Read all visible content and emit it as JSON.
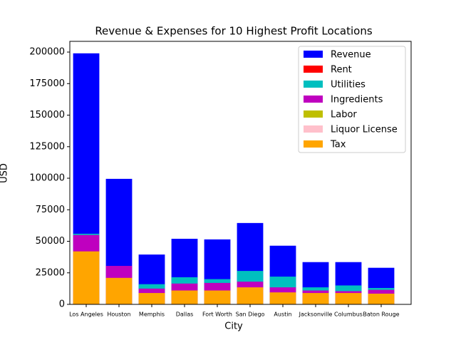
{
  "chart_data": {
    "type": "bar",
    "title": "Revenue & Expenses for 10 Highest Profit Locations",
    "x_label": "City",
    "y_label": "USD",
    "categories": [
      "Los Angeles",
      "Houston",
      "Memphis",
      "Dallas",
      "Fort Worth",
      "San Diego",
      "Austin",
      "Jacksonville",
      "Columbus",
      "Baton Rouge"
    ],
    "series": [
      {
        "name": "Revenue",
        "color": "#0000ff",
        "values": [
          199000,
          99500,
          39500,
          52000,
          51500,
          64500,
          46500,
          33500,
          33500,
          29000
        ]
      },
      {
        "name": "Rent",
        "color": "#ff0000",
        "values": [
          null,
          null,
          null,
          null,
          null,
          null,
          null,
          null,
          null,
          null
        ]
      },
      {
        "name": "Utilities",
        "color": "#00bfbf",
        "values": [
          56000,
          null,
          16000,
          21500,
          20000,
          26500,
          22000,
          13500,
          15000,
          13000
        ]
      },
      {
        "name": "Ingredients",
        "color": "#bf00bf",
        "values": [
          55000,
          30500,
          12500,
          16500,
          17000,
          18000,
          13500,
          11000,
          10500,
          11500
        ]
      },
      {
        "name": "Labor",
        "color": "#bfbf00",
        "values": [
          null,
          null,
          null,
          null,
          null,
          null,
          null,
          null,
          null,
          null
        ]
      },
      {
        "name": "Liquor License",
        "color": "#ffc0cb",
        "values": [
          null,
          null,
          null,
          null,
          null,
          null,
          null,
          null,
          null,
          null
        ]
      },
      {
        "name": "Tax",
        "color": "#ffa500",
        "values": [
          42000,
          21000,
          9000,
          11000,
          11000,
          13500,
          9500,
          9000,
          9000,
          8500
        ]
      }
    ],
    "ylim": [
      0,
      208500
    ],
    "yticks": [
      0,
      25000,
      50000,
      75000,
      100000,
      125000,
      150000,
      175000,
      200000
    ],
    "legend": "upper right"
  }
}
